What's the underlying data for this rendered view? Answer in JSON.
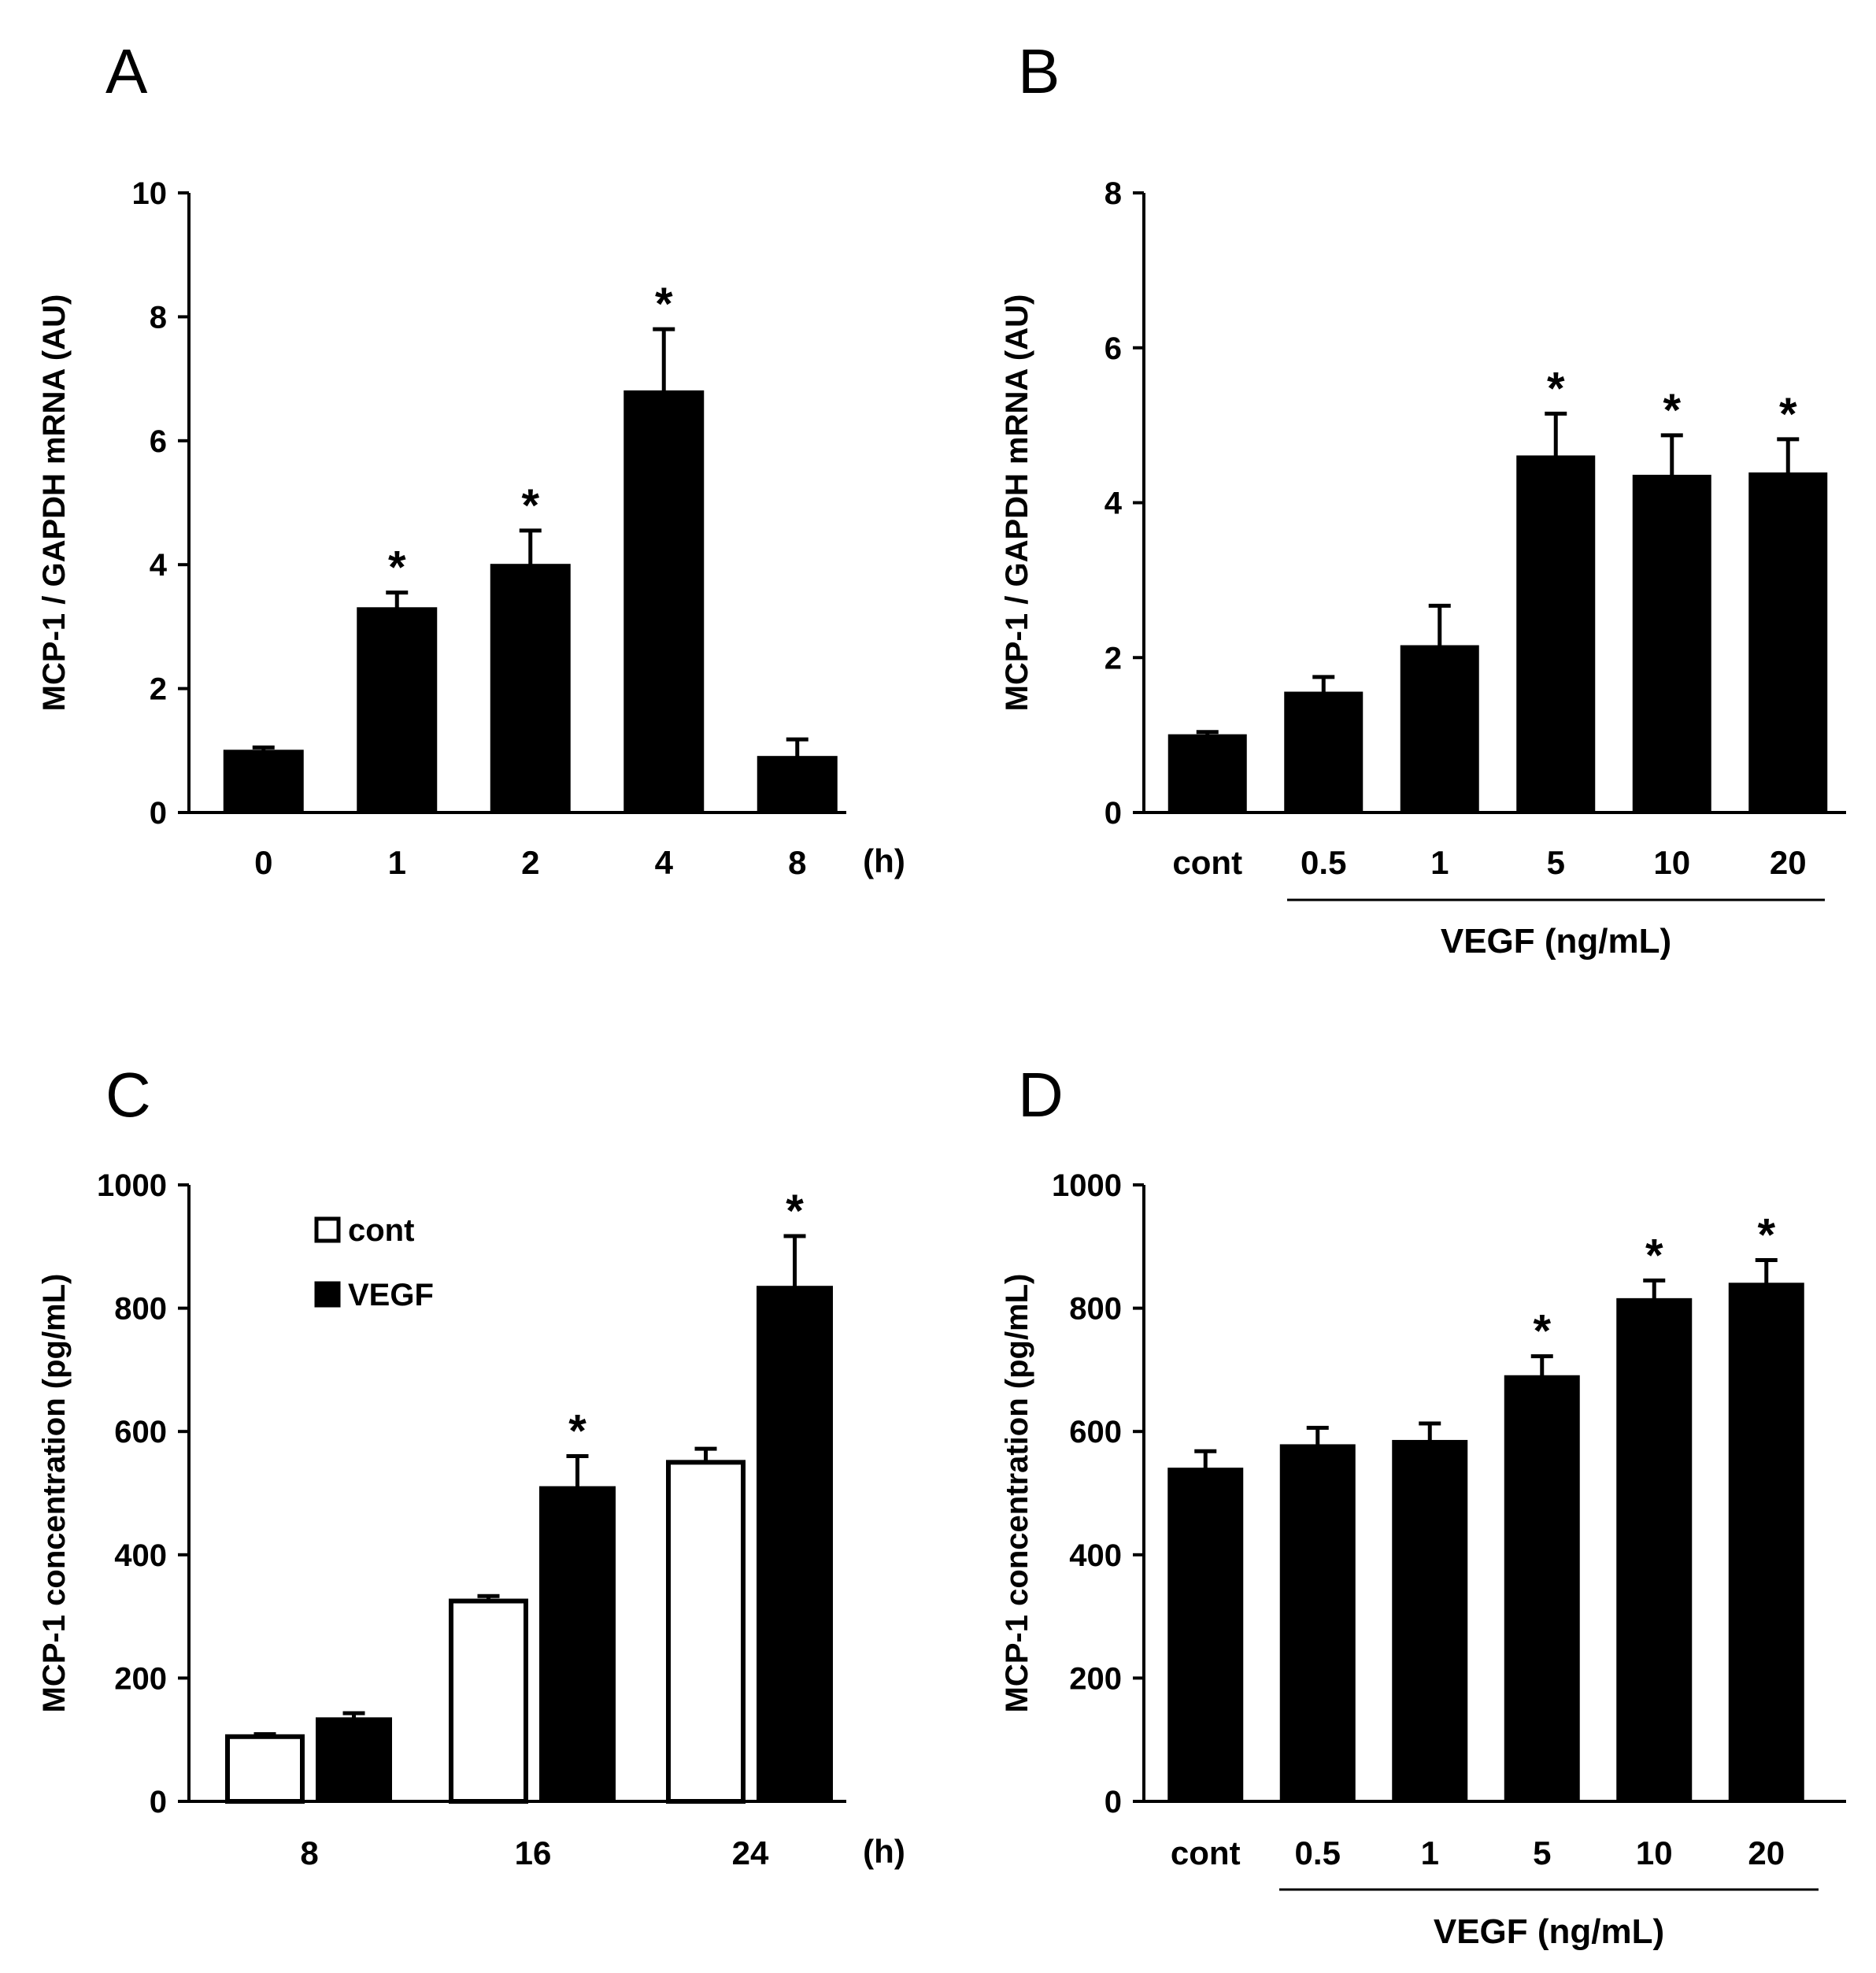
{
  "chart_data": [
    {
      "panel": "A",
      "type": "bar",
      "categories": [
        "0",
        "1",
        "2",
        "4",
        "8"
      ],
      "x_unit": "(h)",
      "ylabel": "MCP-1 / GAPDH mRNA (AU)",
      "ylim": [
        0,
        10
      ],
      "yticks": [
        "0",
        "2",
        "4",
        "6",
        "8",
        "10"
      ],
      "series": [
        {
          "values": [
            1.0,
            3.3,
            4.0,
            6.8,
            0.9
          ],
          "errors": [
            0.05,
            0.25,
            0.55,
            1.0,
            0.28
          ],
          "fill": "#000000"
        }
      ],
      "significant": [
        false,
        true,
        true,
        true,
        false
      ],
      "asterisk": "*",
      "grid": false
    },
    {
      "panel": "B",
      "type": "bar",
      "categories": [
        "cont",
        "0.5",
        "1",
        "5",
        "10",
        "20"
      ],
      "xlabel": "VEGF (ng/mL)",
      "ylabel": "MCP-1 / GAPDH mRNA (AU)",
      "ylim": [
        0,
        8
      ],
      "yticks": [
        "0",
        "2",
        "4",
        "6",
        "8"
      ],
      "series": [
        {
          "values": [
            1.0,
            1.55,
            2.15,
            4.6,
            4.35,
            4.38
          ],
          "errors": [
            0.04,
            0.2,
            0.52,
            0.55,
            0.52,
            0.44
          ],
          "fill": "#000000"
        }
      ],
      "significant": [
        false,
        false,
        false,
        true,
        true,
        true
      ],
      "asterisk": "*",
      "grid": false
    },
    {
      "panel": "C",
      "type": "bar",
      "categories": [
        "8",
        "16",
        "24"
      ],
      "x_unit": "(h)",
      "ylabel": "MCP-1 concentration (pg/mL)",
      "ylim": [
        0,
        1000
      ],
      "yticks": [
        "0",
        "200",
        "400",
        "600",
        "800",
        "1000"
      ],
      "series": [
        {
          "name": "cont",
          "values": [
            105,
            325,
            550
          ],
          "errors": [
            4,
            8,
            22
          ],
          "fill": "#ffffff"
        },
        {
          "name": "VEGF",
          "values": [
            135,
            510,
            835
          ],
          "errors": [
            8,
            50,
            82
          ],
          "fill": "#000000"
        }
      ],
      "significant": {
        "VEGF": [
          false,
          true,
          true
        ]
      },
      "asterisk": "*",
      "legend_position": "top-left",
      "grid": false
    },
    {
      "panel": "D",
      "type": "bar",
      "categories": [
        "cont",
        "0.5",
        "1",
        "5",
        "10",
        "20"
      ],
      "xlabel": "VEGF (ng/mL)",
      "ylabel": "MCP-1 concentration (pg/mL)",
      "ylim": [
        0,
        1000
      ],
      "yticks": [
        "0",
        "200",
        "400",
        "600",
        "800",
        "1000"
      ],
      "series": [
        {
          "values": [
            540,
            578,
            585,
            690,
            815,
            840
          ],
          "errors": [
            28,
            28,
            28,
            32,
            30,
            38
          ],
          "fill": "#000000"
        }
      ],
      "significant": [
        false,
        false,
        false,
        true,
        true,
        true
      ],
      "asterisk": "*",
      "grid": false
    }
  ]
}
